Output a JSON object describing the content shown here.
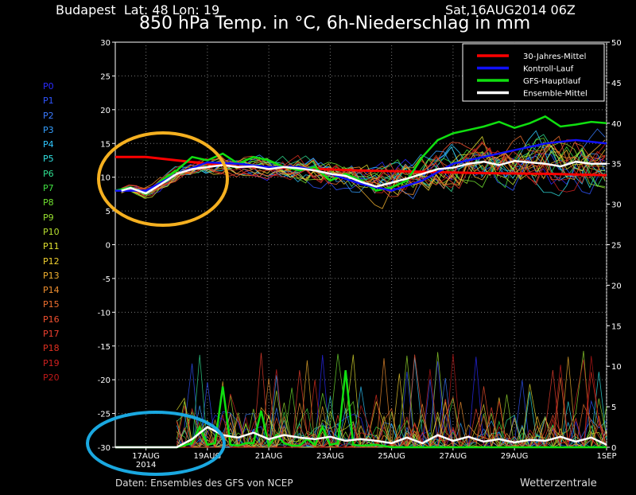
{
  "header": {
    "location": "Budapest  Lat: 48 Lon: 19",
    "run": "Sat,16AUG2014 06Z",
    "title": "850 hPa Temp. in °C, 6h-Niederschlag in mm"
  },
  "footer": {
    "source": "Daten: Ensembles des GFS von NCEP",
    "brand": "Wetterzentrale"
  },
  "members": [
    {
      "name": "P0",
      "color": "#2a2aff"
    },
    {
      "name": "P1",
      "color": "#2f55ff"
    },
    {
      "name": "P2",
      "color": "#3a7aff"
    },
    {
      "name": "P3",
      "color": "#35a0ff"
    },
    {
      "name": "P4",
      "color": "#30c8ff"
    },
    {
      "name": "P5",
      "color": "#30e0e0"
    },
    {
      "name": "P6",
      "color": "#30e090"
    },
    {
      "name": "P7",
      "color": "#40e040"
    },
    {
      "name": "P8",
      "color": "#70e030"
    },
    {
      "name": "P9",
      "color": "#98e030"
    },
    {
      "name": "P10",
      "color": "#b8e030"
    },
    {
      "name": "P11",
      "color": "#e0e030"
    },
    {
      "name": "P12",
      "color": "#f0d030"
    },
    {
      "name": "P13",
      "color": "#f0b030"
    },
    {
      "name": "P14",
      "color": "#f09030"
    },
    {
      "name": "P15",
      "color": "#f07030"
    },
    {
      "name": "P16",
      "color": "#f05030"
    },
    {
      "name": "P17",
      "color": "#f04030"
    },
    {
      "name": "P18",
      "color": "#e03020"
    },
    {
      "name": "P19",
      "color": "#d02020"
    },
    {
      "name": "P20",
      "color": "#c01818"
    }
  ],
  "chart_data": {
    "type": "line",
    "title": "850 hPa Temp. in °C, 6h-Niederschlag in mm",
    "x_ticks": [
      "17AUG",
      "19AUG",
      "21AUG",
      "23AUG",
      "25AUG",
      "27AUG",
      "29AUG",
      "1SEP"
    ],
    "x_tick_sub": {
      "17AUG": "2014"
    },
    "x_range_days": [
      0,
      16
    ],
    "y_left": {
      "range": [
        -30,
        30
      ],
      "ticks": [
        -30,
        -25,
        -20,
        -15,
        -10,
        -5,
        0,
        5,
        10,
        15,
        20,
        25,
        30
      ]
    },
    "y_right": {
      "range": [
        0,
        50
      ],
      "ticks": [
        0,
        5,
        10,
        15,
        20,
        25,
        30,
        35,
        40,
        45,
        50
      ]
    },
    "grid": true,
    "legend_position": "top-right",
    "legend": [
      {
        "name": "30-Jahres-Mittel",
        "color": "#ff0000"
      },
      {
        "name": "Kontroll-Lauf",
        "color": "#1010ff"
      },
      {
        "name": "GFS-Hauptlauf",
        "color": "#10e010"
      },
      {
        "name": "Ensemble-Mittel",
        "color": "#ffffff"
      }
    ],
    "temperature_series": [
      {
        "name": "30-Jahres-Mittel",
        "color": "#ff0000",
        "x": [
          0,
          1,
          2,
          3,
          4,
          6,
          8,
          10,
          12,
          14,
          16
        ],
        "y": [
          13,
          13,
          12.5,
          12,
          11.6,
          11.3,
          11,
          10.8,
          10.6,
          10.5,
          10.3
        ]
      },
      {
        "name": "GFS-Hauptlauf",
        "color": "#10e010",
        "x": [
          0,
          0.5,
          1,
          1.5,
          2,
          2.5,
          3,
          3.5,
          4,
          4.5,
          5,
          5.5,
          6,
          6.5,
          7,
          7.5,
          8,
          8.5,
          9,
          9.5,
          10,
          10.5,
          11,
          11.5,
          12,
          12.5,
          13,
          13.5,
          14,
          14.5,
          15,
          15.5,
          16
        ],
        "y": [
          8,
          8.5,
          7.5,
          9.5,
          11,
          13,
          12.5,
          13.5,
          12,
          13,
          12.5,
          11.5,
          11,
          11.5,
          9.5,
          10.5,
          9.5,
          8,
          8.5,
          9.5,
          13,
          15.5,
          16.5,
          17,
          17.5,
          18.2,
          17.3,
          18,
          19,
          17.5,
          17.8,
          18.2,
          18
        ]
      },
      {
        "name": "Kontroll-Lauf",
        "color": "#1010ff",
        "x": [
          0,
          1,
          2,
          3,
          4,
          5,
          6,
          7,
          8,
          9,
          10,
          11,
          12,
          13,
          14,
          15,
          16
        ],
        "y": [
          8,
          8,
          10.5,
          12.2,
          12,
          11.5,
          11.5,
          10.5,
          9,
          8,
          9.5,
          12,
          13,
          14,
          15,
          15.5,
          15
        ]
      },
      {
        "name": "Ensemble-Mittel",
        "color": "#ffffff",
        "x": [
          0.2,
          0.5,
          1,
          1.5,
          2,
          2.5,
          3,
          3.5,
          4,
          4.5,
          5,
          5.5,
          6,
          6.5,
          7,
          7.5,
          8,
          8.5,
          9,
          9.5,
          10,
          10.5,
          11,
          11.5,
          12,
          12.5,
          13,
          13.5,
          14,
          14.5,
          15,
          15.5,
          16
        ],
        "y": [
          8,
          8.4,
          7.6,
          9,
          10.5,
          11.2,
          11.5,
          11.8,
          11.5,
          11.6,
          11.2,
          11.5,
          11.3,
          11,
          10.5,
          10.2,
          9.3,
          8.6,
          9.2,
          9.8,
          10.5,
          11.2,
          11.4,
          12,
          12.3,
          11.8,
          12.4,
          12.2,
          12,
          11.6,
          12.3,
          12,
          12
        ]
      }
    ],
    "precip_series": [
      {
        "name": "GFS-Hauptlauf",
        "color": "#10e010",
        "x": [
          0,
          2,
          2.5,
          2.75,
          3,
          3.25,
          3.5,
          3.75,
          4,
          4.25,
          4.5,
          4.75,
          5,
          5.25,
          5.5,
          5.75,
          6,
          6.25,
          6.5,
          6.75,
          7,
          7.25,
          7.5,
          7.75,
          8,
          8.5,
          9,
          10,
          11,
          12,
          13,
          14,
          15,
          16
        ],
        "y": [
          0,
          0,
          0.5,
          2.5,
          0.3,
          0.5,
          7.5,
          0.3,
          0.2,
          0.5,
          0.5,
          4.5,
          0.2,
          1.5,
          0.5,
          0.2,
          0.2,
          1,
          0.3,
          2.5,
          0.3,
          0.5,
          9.5,
          0.3,
          0.2,
          0.3,
          0,
          0,
          0,
          0,
          0,
          0,
          0,
          0
        ]
      },
      {
        "name": "Ensemble-Mittel",
        "color": "#ffffff",
        "x": [
          0,
          2,
          2.5,
          3,
          3.5,
          4,
          4.5,
          5,
          5.5,
          6,
          6.5,
          7,
          7.5,
          8,
          8.5,
          9,
          9.5,
          10,
          10.5,
          11,
          11.5,
          12,
          12.5,
          13,
          13.5,
          14,
          14.5,
          15,
          15.5,
          16
        ],
        "y": [
          0,
          0,
          1,
          2.5,
          1.5,
          1.2,
          1.8,
          1,
          1.5,
          1.2,
          1,
          1.3,
          0.8,
          1,
          0.8,
          0.5,
          1.2,
          0.5,
          1.5,
          0.8,
          1.3,
          0.7,
          1,
          0.6,
          0.9,
          0.8,
          1.3,
          0.7,
          1.2,
          0.3
        ]
      }
    ]
  },
  "annotations": [
    {
      "shape": "ellipse",
      "color": "#f5b020",
      "label": ""
    },
    {
      "shape": "ellipse",
      "color": "#1aa8e0",
      "label": ""
    }
  ]
}
